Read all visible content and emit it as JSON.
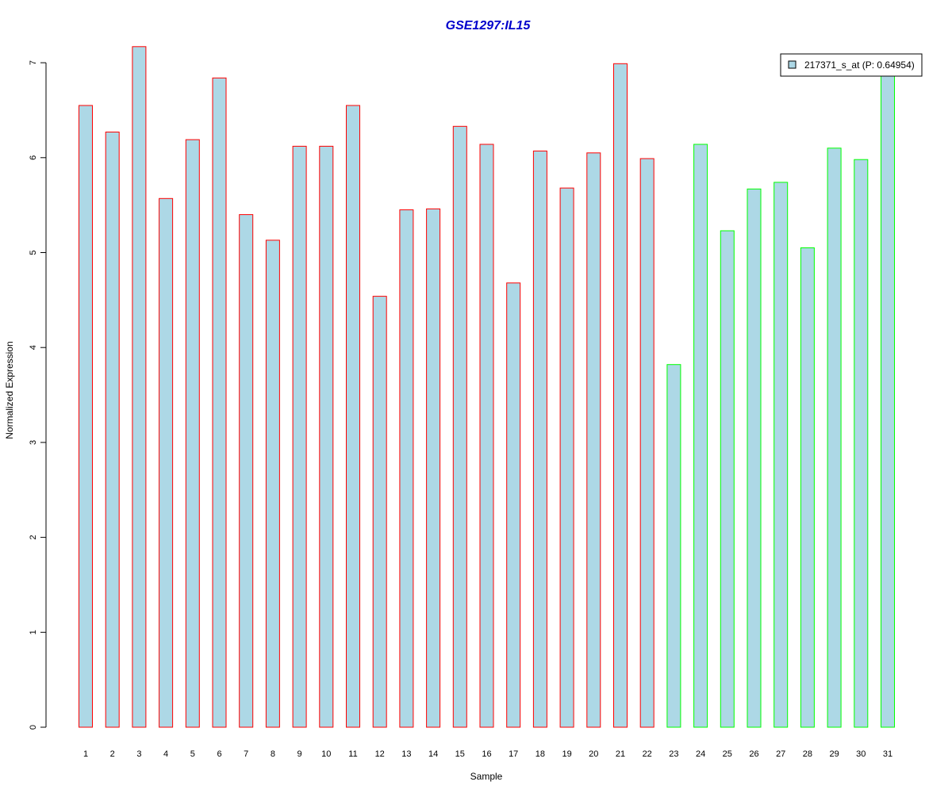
{
  "chart_data": {
    "type": "bar",
    "title": "GSE1297:IL15",
    "xlabel": "Sample",
    "ylabel": "Normalized Expression",
    "ylim": [
      0,
      7.3
    ],
    "yticks": [
      0,
      1,
      2,
      3,
      4,
      5,
      6,
      7
    ],
    "categories": [
      "1",
      "2",
      "3",
      "4",
      "5",
      "6",
      "7",
      "8",
      "9",
      "10",
      "11",
      "12",
      "13",
      "14",
      "15",
      "16",
      "17",
      "18",
      "19",
      "20",
      "21",
      "22",
      "23",
      "24",
      "25",
      "26",
      "27",
      "28",
      "29",
      "30",
      "31"
    ],
    "series": [
      {
        "name": "217371_s_at (P: 0.64954)",
        "values": [
          6.55,
          6.27,
          7.17,
          5.57,
          6.19,
          6.84,
          5.4,
          5.13,
          6.12,
          6.12,
          6.55,
          4.54,
          5.45,
          5.46,
          6.33,
          6.14,
          4.68,
          6.07,
          5.68,
          6.05,
          6.99,
          5.99,
          3.82,
          6.14,
          5.23,
          5.67,
          5.74,
          5.05,
          6.1,
          5.98,
          6.86
        ],
        "fill": "#add8e6"
      }
    ],
    "group_border_colors": [
      "#ff0000",
      "#ff0000",
      "#ff0000",
      "#ff0000",
      "#ff0000",
      "#ff0000",
      "#ff0000",
      "#ff0000",
      "#ff0000",
      "#ff0000",
      "#ff0000",
      "#ff0000",
      "#ff0000",
      "#ff0000",
      "#ff0000",
      "#ff0000",
      "#ff0000",
      "#ff0000",
      "#ff0000",
      "#ff0000",
      "#ff0000",
      "#ff0000",
      "#00ff00",
      "#00ff00",
      "#00ff00",
      "#00ff00",
      "#00ff00",
      "#00ff00",
      "#00ff00",
      "#00ff00",
      "#00ff00"
    ],
    "title_color": "#0000cc",
    "grid": false,
    "legend_position": "top-right"
  }
}
